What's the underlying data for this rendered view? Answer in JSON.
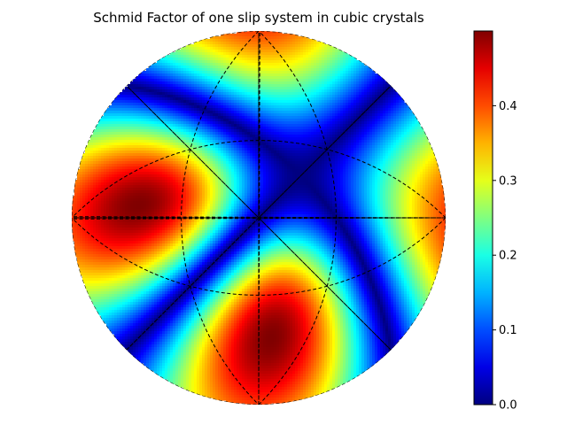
{
  "chart_data": {
    "type": "heatmap",
    "title": "Schmid Factor of one slip system in cubic crystals",
    "projection": "stereographic",
    "colormap": "jet",
    "colorbar": {
      "range": [
        0.0,
        0.5
      ],
      "ticks": [
        0.0,
        0.1,
        0.2,
        0.3,
        0.4
      ],
      "tick_labels": [
        "0.0",
        "0.1",
        "0.2",
        "0.3",
        "0.4"
      ]
    },
    "grid": true,
    "grid_style": "dashed"
  }
}
